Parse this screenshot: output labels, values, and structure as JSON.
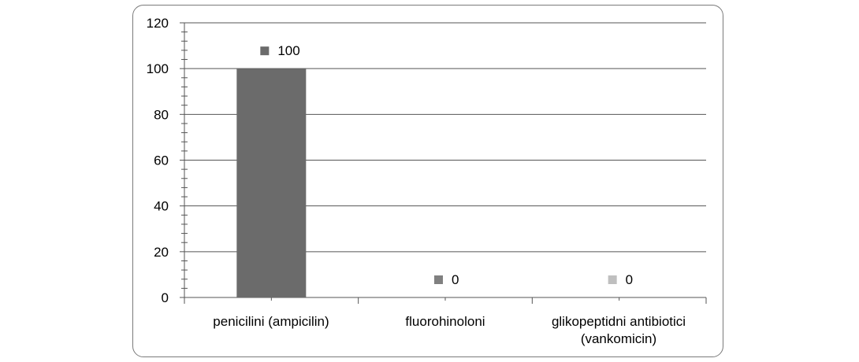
{
  "chart_data": {
    "type": "bar",
    "categories": [
      "penicilini (ampicilin)",
      "fluorohinoloni",
      "glikopeptidni antibiotici\n(vankomicin)"
    ],
    "values": [
      100,
      0,
      0
    ],
    "data_labels": [
      "100",
      "0",
      "0"
    ],
    "bar_colors": [
      "#6b6b6b",
      "#808080",
      "#bfbfbf"
    ],
    "ylim": [
      0,
      120
    ],
    "y_ticks": [
      "0",
      "20",
      "40",
      "60",
      "80",
      "100",
      "120"
    ],
    "grid": true,
    "title": "",
    "xlabel": "",
    "ylabel": ""
  }
}
